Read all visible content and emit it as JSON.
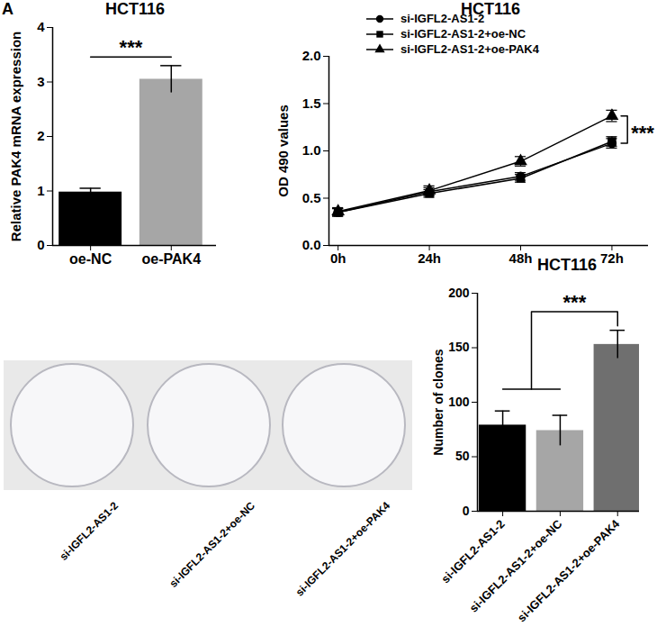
{
  "figure": {
    "panel_label": "A"
  },
  "chart_data": [
    {
      "type": "bar",
      "title": "HCT116",
      "categories": [
        "oe-NC",
        "oe-PAK4"
      ],
      "values": [
        0.98,
        3.05
      ],
      "errors": [
        0.07,
        0.25
      ],
      "colors": [
        "#000000",
        "#a6a6a6"
      ],
      "ylabel": "Relative PAK4 mRNA expression",
      "ylim": [
        0,
        4
      ],
      "yticks": [
        0,
        1,
        2,
        3,
        4
      ],
      "annotations": [
        "***"
      ]
    },
    {
      "type": "line",
      "title": "HCT116",
      "categories": [
        "0h",
        "24h",
        "48h",
        "72h"
      ],
      "ylabel": "OD 490 values",
      "ylim": [
        0,
        2
      ],
      "yticks": [
        {
          "value": 0,
          "label": "0.0"
        },
        {
          "value": 0.5,
          "label": "0.5"
        },
        {
          "value": 1,
          "label": "1.0"
        },
        {
          "value": 1.5,
          "label": "1.5"
        },
        {
          "value": 2,
          "label": "2.0"
        }
      ],
      "legend": "top-left",
      "annotations": [
        "***"
      ],
      "series": [
        {
          "name": "si-IGFL2-AS1-2",
          "color": "#000000",
          "marker": "circle",
          "values": [
            0.35,
            0.57,
            0.73,
            1.08
          ],
          "errors": [
            0.04,
            0.04,
            0.04,
            0.05
          ]
        },
        {
          "name": "si-IGFL2-AS1-2+oe-NC",
          "color": "#000000",
          "marker": "square",
          "values": [
            0.35,
            0.55,
            0.71,
            1.1
          ],
          "errors": [
            0.04,
            0.04,
            0.04,
            0.05
          ]
        },
        {
          "name": "si-IGFL2-AS1-2+oe-PAK4",
          "color": "#000000",
          "marker": "triangle",
          "values": [
            0.36,
            0.58,
            0.89,
            1.37
          ],
          "errors": [
            0.04,
            0.05,
            0.05,
            0.06
          ]
        }
      ]
    },
    {
      "type": "bar",
      "title": "HCT116",
      "categories": [
        "si-IGFL2-AS1-2",
        "si-IGFL2-AS1-2+oe-NC",
        "si-IGFL2-AS1-2+oe-PAK4"
      ],
      "values": [
        79,
        74,
        153
      ],
      "errors": [
        13,
        14,
        13
      ],
      "colors": [
        "#000000",
        "#a6a6a6",
        "#6f6f6f"
      ],
      "ylabel": "Number of clones",
      "ylim": [
        0,
        200
      ],
      "yticks": [
        0,
        50,
        100,
        150,
        200
      ],
      "annotations": [
        "***"
      ]
    }
  ],
  "colony_images": {
    "labels": [
      "si-IGFL2-AS1-2",
      "si-IGFL2-AS1-2+oe-NC",
      "si-IGFL2-AS1-2+oe-PAK4"
    ]
  }
}
